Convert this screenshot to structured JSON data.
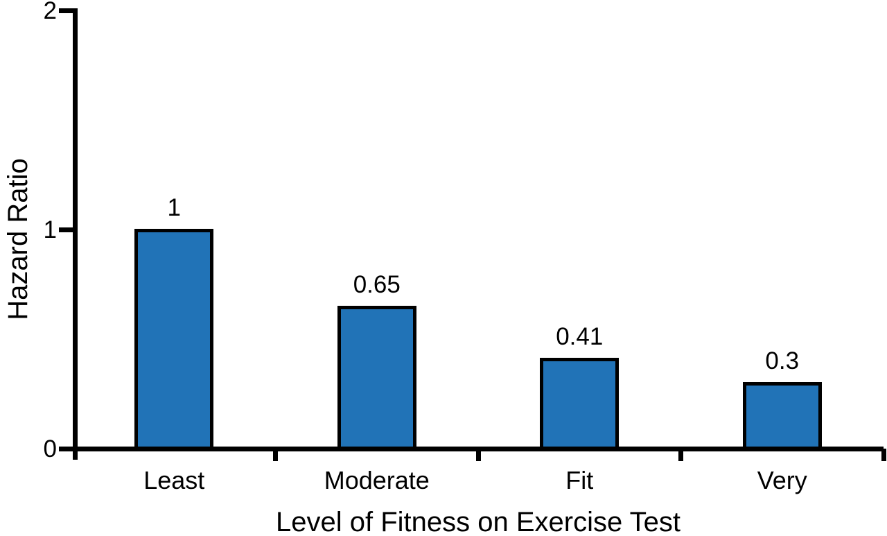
{
  "chart_data": {
    "type": "bar",
    "categories": [
      "Least",
      "Moderate",
      "Fit",
      "Very"
    ],
    "values": [
      1,
      0.65,
      0.41,
      0.3
    ],
    "value_labels": [
      "1",
      "0.65",
      "0.41",
      "0.3"
    ],
    "title": "",
    "xlabel": "Level of Fitness on Exercise Test",
    "ylabel": "Hazard Ratio",
    "ylim": [
      0,
      2
    ],
    "yticks": [
      0,
      1,
      2
    ],
    "ytick_labels": [
      "0",
      "1",
      "2"
    ],
    "grid": false,
    "legend": null,
    "colors": {
      "bar_fill": "#2173B7",
      "bar_border": "#000000",
      "axis": "#000000",
      "text": "#000000",
      "background": "#FFFFFF"
    }
  }
}
